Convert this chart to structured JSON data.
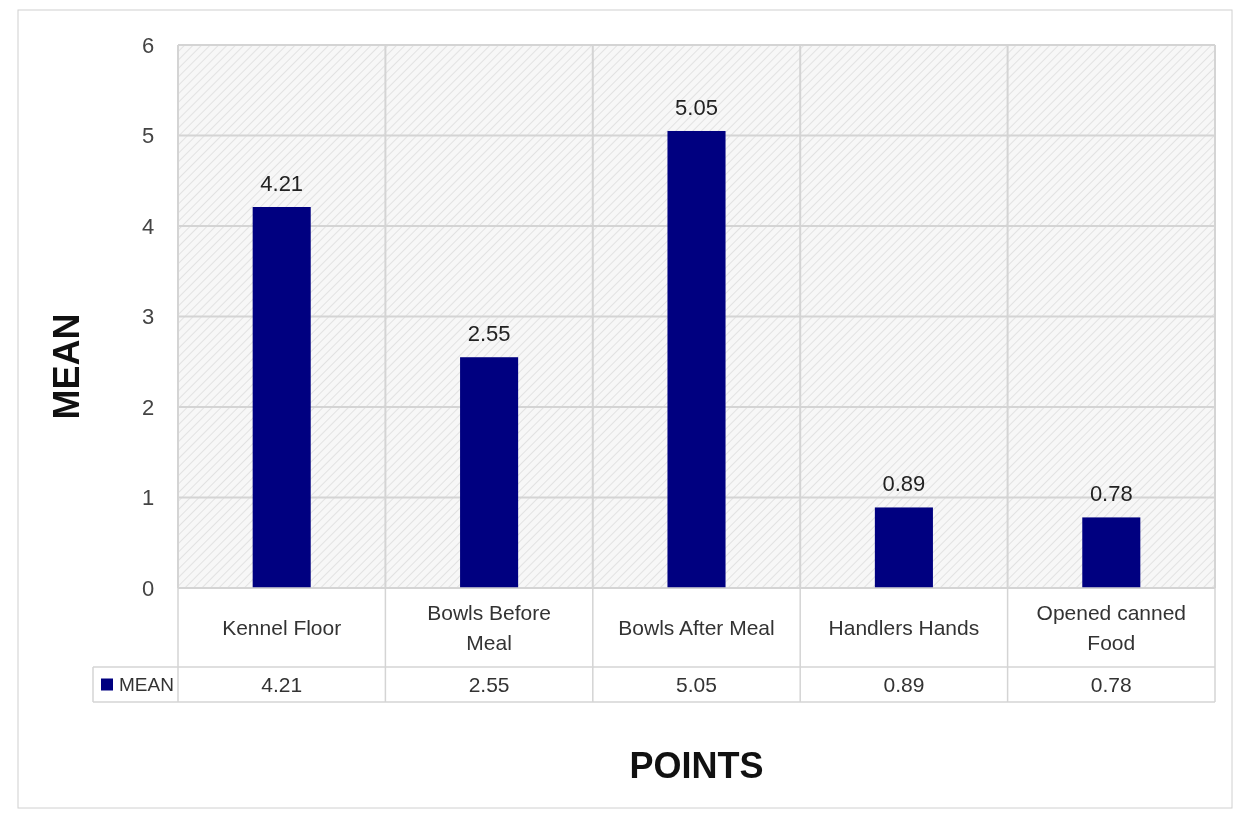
{
  "chart_data": {
    "type": "bar",
    "xlabel": "POINTS",
    "ylabel": "MEAN",
    "categories": [
      "Kennel Floor",
      "Bowls Before Meal",
      "Bowls After Meal",
      "Handlers Hands",
      "Opened canned Food"
    ],
    "series": [
      {
        "name": "MEAN",
        "color": "#000080",
        "values": [
          4.21,
          2.55,
          5.05,
          0.89,
          0.78
        ],
        "value_labels": [
          "4.21",
          "2.55",
          "5.05",
          "0.89",
          "0.78"
        ]
      }
    ],
    "ylim": [
      0,
      6
    ],
    "yticks": [
      0,
      1,
      2,
      3,
      4,
      5,
      6
    ],
    "grid": true,
    "legend": "bottom left",
    "annotations": [
      "4.21",
      "2.55",
      "5.05",
      "0.89",
      "0.78"
    ]
  }
}
